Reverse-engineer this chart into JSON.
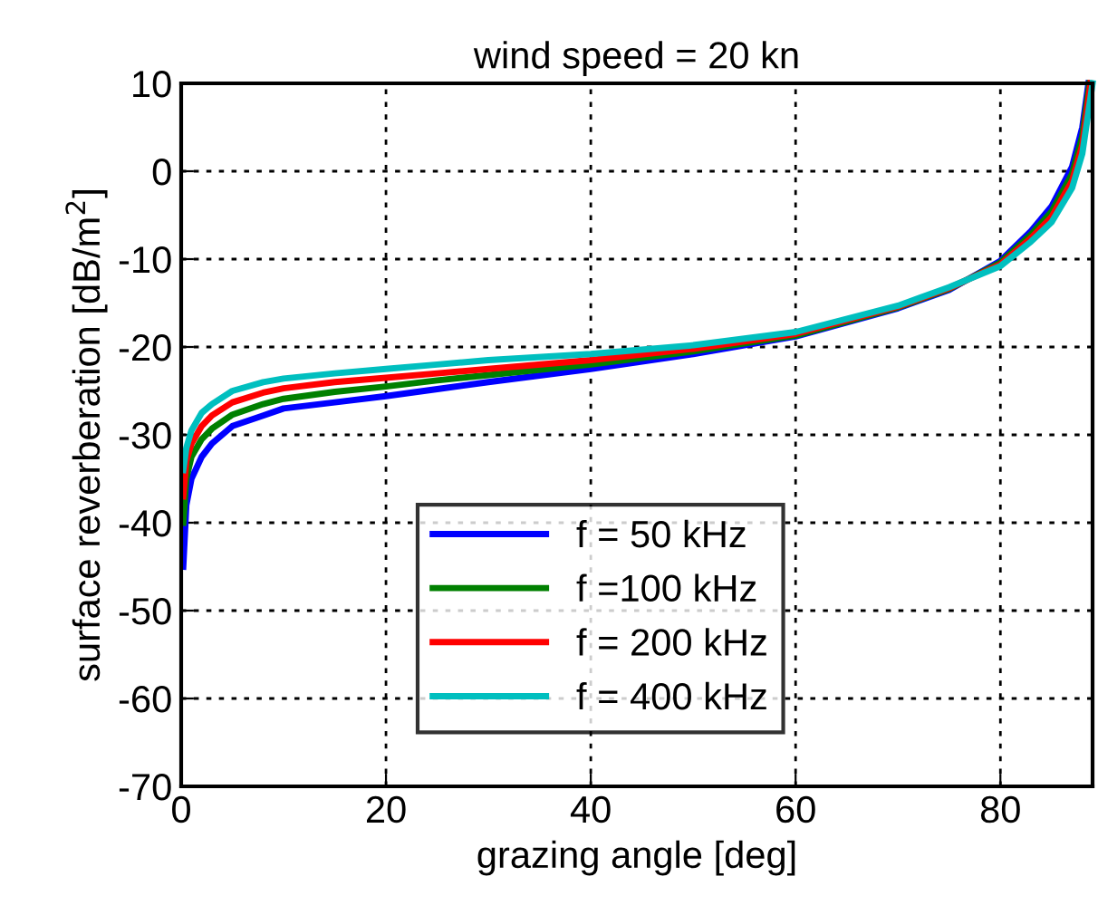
{
  "chart_data": {
    "type": "line",
    "title": "wind speed = 20 kn",
    "xlabel": "grazing angle [deg]",
    "ylabel": "surface reverberation [dB/m$^{2}$]",
    "series": [
      {
        "name": "f = 50 kHz",
        "color": "#0000ff",
        "x": [
          0.2,
          0.5,
          1,
          2,
          3,
          5,
          8,
          10,
          15,
          20,
          25,
          30,
          40,
          50,
          60,
          70,
          75,
          80,
          83,
          85,
          87,
          88,
          88.6
        ],
        "values": [
          -45,
          -38,
          -35,
          -32.5,
          -31,
          -29,
          -27.8,
          -27,
          -26.3,
          -25.6,
          -24.8,
          -24,
          -22.5,
          -20.8,
          -18.8,
          -15.6,
          -13.5,
          -10.2,
          -6.8,
          -4,
          0.5,
          5,
          10
        ]
      },
      {
        "name": "f =100 kHz",
        "color": "#008000",
        "x": [
          0.2,
          0.5,
          1,
          2,
          3,
          5,
          8,
          10,
          15,
          20,
          25,
          30,
          40,
          50,
          60,
          70,
          75,
          80,
          83,
          85,
          87,
          88,
          88.7
        ],
        "values": [
          -40,
          -35,
          -32.5,
          -30.5,
          -29.3,
          -27.7,
          -26.5,
          -25.9,
          -25.1,
          -24.5,
          -23.8,
          -23.2,
          -22,
          -20.5,
          -18.7,
          -15.5,
          -13.4,
          -10.4,
          -7.2,
          -4.6,
          -0.3,
          4,
          10
        ]
      },
      {
        "name": "f = 200 kHz",
        "color": "#ff0000",
        "x": [
          0.2,
          0.5,
          1,
          2,
          3,
          5,
          8,
          10,
          15,
          20,
          25,
          30,
          40,
          50,
          60,
          70,
          75,
          80,
          83,
          85,
          87,
          88,
          88.8
        ],
        "values": [
          -37,
          -33,
          -31,
          -29,
          -27.8,
          -26.3,
          -25.2,
          -24.7,
          -24,
          -23.5,
          -23,
          -22.5,
          -21.5,
          -20.2,
          -18.5,
          -15.4,
          -13.3,
          -10.6,
          -7.6,
          -5.2,
          -1.1,
          3,
          10
        ]
      },
      {
        "name": "f = 400 kHz",
        "color": "#00bfbf",
        "x": [
          0.2,
          0.5,
          1,
          2,
          3,
          5,
          8,
          10,
          15,
          20,
          25,
          30,
          40,
          50,
          60,
          70,
          75,
          80,
          83,
          85,
          87,
          88,
          89
        ],
        "values": [
          -34,
          -31.5,
          -29.5,
          -27.5,
          -26.5,
          -25,
          -24,
          -23.6,
          -23,
          -22.5,
          -22,
          -21.5,
          -20.8,
          -19.8,
          -18.3,
          -15.3,
          -13.2,
          -10.8,
          -8,
          -5.8,
          -1.9,
          2,
          10
        ]
      }
    ],
    "xlim": [
      0,
      89
    ],
    "xticks": [
      0,
      20,
      40,
      60,
      80
    ],
    "ylim": [
      -70,
      10
    ],
    "yticks": [
      -70,
      -60,
      -50,
      -40,
      -30,
      -20,
      -10,
      0,
      10
    ],
    "grid": true,
    "legend": "bottom",
    "line_style": "solid",
    "marker": "none"
  }
}
